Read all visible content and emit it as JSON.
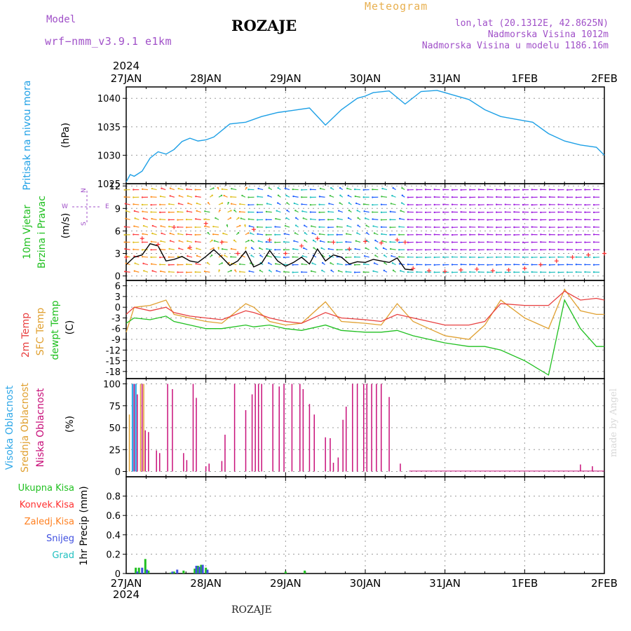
{
  "header": {
    "model_label": "Model",
    "model_name": "wrf−nmm_v3.9.1  e1km",
    "location": "ROZAJE",
    "product": "Meteogram",
    "coords": "lon,lat (20.1312E, 42.8625N)",
    "elevation": "Nadmorska Visina 1012m",
    "model_elevation": "Nadmorska Visina u modelu 1186.16m"
  },
  "footer": {
    "location": "ROZAJE",
    "credit": "made by Angel"
  },
  "colors": {
    "pressure": "#1ea0e6",
    "wind_speed": "#000000",
    "gust": "#ff3030",
    "t2m": "#e84040",
    "sfc_temp": "#e0a030",
    "dewpoint": "#20c020",
    "cloud_high": "#30a8e8",
    "cloud_mid": "#e0a030",
    "cloud_low": "#c8107a",
    "precip_total": "#20c020",
    "precip_conv": "#ff3030",
    "precip_frozen": "#ff8020",
    "snow": "#4050e0",
    "graupel": "#20c0c0",
    "label_purple": "#a050c8"
  },
  "chart_data": [
    {
      "type": "line",
      "panel": "pressure",
      "ylabel": [
        "Pritisak na nivou mora",
        "(hPa)"
      ],
      "ylim": [
        1025,
        1042
      ],
      "yticks": [
        1025,
        1030,
        1035,
        1040
      ],
      "grid": true,
      "top_year": "2024",
      "x_dates": [
        "27JAN",
        "28JAN",
        "29JAN",
        "30JAN",
        "31JAN",
        "1FEB",
        "2FEB"
      ],
      "series": [
        {
          "name": "Pritisak na nivou mora",
          "x": [
            0,
            0.05,
            0.1,
            0.2,
            0.3,
            0.4,
            0.5,
            0.6,
            0.7,
            0.8,
            0.9,
            1.0,
            1.1,
            1.3,
            1.5,
            1.7,
            1.9,
            2.1,
            2.3,
            2.5,
            2.7,
            2.9,
            3.0,
            3.1,
            3.3,
            3.5,
            3.7,
            3.9,
            4.1,
            4.3,
            4.5,
            4.7,
            4.9,
            5.1,
            5.3,
            5.5,
            5.7,
            5.9,
            6.0
          ],
          "values": [
            1025.3,
            1026.6,
            1026.3,
            1027.2,
            1029.5,
            1030.6,
            1030.2,
            1031.0,
            1032.4,
            1033.0,
            1032.5,
            1032.7,
            1033.2,
            1035.5,
            1035.8,
            1036.8,
            1037.5,
            1037.9,
            1038.3,
            1035.3,
            1038.0,
            1040.0,
            1040.4,
            1041.0,
            1041.3,
            1039.0,
            1041.2,
            1041.4,
            1040.6,
            1039.8,
            1038.0,
            1036.8,
            1036.3,
            1035.8,
            1033.8,
            1032.5,
            1031.8,
            1031.4,
            1030.0
          ]
        }
      ]
    },
    {
      "type": "line",
      "panel": "wind",
      "ylabel": [
        "10m Vjetar",
        "Brzina i Pravac",
        "(m/s)"
      ],
      "compass": [
        "N",
        "S",
        "W",
        "E"
      ],
      "ylim": [
        0,
        12
      ],
      "yticks": [
        0,
        3,
        6,
        9,
        12
      ],
      "grid": true,
      "series": [
        {
          "name": "brzina",
          "x": [
            0,
            0.1,
            0.2,
            0.3,
            0.4,
            0.5,
            0.6,
            0.7,
            0.8,
            0.9,
            1.0,
            1.1,
            1.2,
            1.3,
            1.4,
            1.5,
            1.6,
            1.7,
            1.8,
            1.9,
            2.0,
            2.1,
            2.2,
            2.3,
            2.4,
            2.5,
            2.6,
            2.7,
            2.8,
            2.9,
            3.0,
            3.1,
            3.2,
            3.3,
            3.4,
            3.5,
            3.6
          ],
          "values": [
            1.5,
            2.5,
            2.8,
            4.3,
            4.0,
            2.0,
            2.2,
            2.6,
            2.0,
            1.8,
            2.6,
            3.5,
            2.5,
            1.4,
            2.0,
            3.3,
            1.2,
            1.7,
            3.4,
            2.0,
            1.3,
            1.8,
            2.5,
            1.6,
            3.6,
            2.0,
            2.8,
            2.5,
            1.6,
            1.9,
            1.8,
            2.2,
            2.0,
            1.8,
            2.4,
            0.9,
            0.8
          ]
        },
        {
          "name": "udari",
          "x": [
            0,
            0.2,
            0.4,
            0.6,
            0.8,
            1.0,
            1.2,
            1.4,
            1.6,
            1.8,
            2.0,
            2.2,
            2.4,
            2.6,
            2.8,
            3.0,
            3.2,
            3.4,
            3.5,
            3.6,
            3.8,
            4.0,
            4.2,
            4.4,
            4.6,
            4.8,
            5.0,
            5.2,
            5.4,
            5.6,
            5.8,
            6.0
          ],
          "values": [
            2.5,
            5.0,
            4.2,
            6.5,
            3.8,
            7.0,
            4.5,
            3.0,
            6.2,
            4.8,
            3.0,
            4.0,
            5.0,
            4.5,
            3.6,
            4.6,
            4.4,
            4.8,
            4.5,
            1.0,
            0.7,
            0.6,
            0.8,
            0.9,
            0.7,
            0.8,
            1.0,
            1.5,
            2.0,
            2.5,
            2.8,
            3.0
          ]
        }
      ]
    },
    {
      "type": "line",
      "panel": "temperature",
      "ylabel": [
        "2m Temp",
        "SFC Temp",
        "dewpt Temp",
        "(C)"
      ],
      "ylim": [
        -20,
        7
      ],
      "yticks": [
        6,
        3,
        0,
        -3,
        -6,
        -9,
        -12,
        -15,
        -18
      ],
      "grid": true,
      "series": [
        {
          "name": "2m Temp",
          "x": [
            0,
            0.1,
            0.3,
            0.5,
            0.6,
            0.8,
            1.0,
            1.2,
            1.5,
            1.6,
            1.8,
            2.0,
            2.2,
            2.5,
            2.7,
            3.0,
            3.2,
            3.4,
            3.6,
            3.8,
            4.0,
            4.3,
            4.5,
            4.7,
            5.0,
            5.3,
            5.5,
            5.7,
            5.9,
            6.0
          ],
          "values": [
            -2,
            0,
            -1,
            0,
            -1.5,
            -2.5,
            -3,
            -3.5,
            -1,
            -1.5,
            -3,
            -4,
            -4.5,
            -1.5,
            -3,
            -3.5,
            -4,
            -2,
            -3,
            -4,
            -5,
            -5,
            -4,
            1,
            0.5,
            0.5,
            4.5,
            2,
            2.5,
            2
          ]
        },
        {
          "name": "SFC Temp",
          "x": [
            0,
            0.1,
            0.3,
            0.5,
            0.6,
            0.8,
            1.0,
            1.2,
            1.5,
            1.6,
            1.8,
            2.0,
            2.2,
            2.5,
            2.7,
            3.0,
            3.2,
            3.4,
            3.6,
            3.8,
            4.0,
            4.3,
            4.5,
            4.7,
            5.0,
            5.3,
            5.5,
            5.7,
            5.9,
            6.0
          ],
          "values": [
            -7,
            0,
            0.5,
            2,
            -2,
            -3,
            -4,
            -4.5,
            1,
            0,
            -4,
            -5,
            -4.5,
            1.5,
            -4,
            -4.5,
            -5,
            1,
            -4,
            -6,
            -8,
            -9,
            -5,
            2,
            -3,
            -6,
            5,
            -1,
            -2,
            -2
          ]
        },
        {
          "name": "dewpt Temp",
          "x": [
            0,
            0.1,
            0.3,
            0.5,
            0.6,
            0.8,
            1.0,
            1.2,
            1.5,
            1.6,
            1.8,
            2.0,
            2.2,
            2.5,
            2.7,
            3.0,
            3.2,
            3.4,
            3.6,
            3.8,
            4.0,
            4.3,
            4.5,
            4.7,
            5.0,
            5.3,
            5.5,
            5.7,
            5.9,
            6.0
          ],
          "values": [
            -4.5,
            -3,
            -3.5,
            -2.5,
            -4,
            -5,
            -6,
            -6,
            -5,
            -5.5,
            -5,
            -6,
            -6.5,
            -5,
            -6.5,
            -7,
            -7,
            -6.5,
            -8,
            -9,
            -10,
            -11,
            -11,
            -12,
            -15,
            -19,
            2,
            -6,
            -11,
            -11
          ]
        }
      ]
    },
    {
      "type": "bar",
      "panel": "cloud",
      "ylabel": [
        "Visoka Oblacnost",
        "Srednja Oblacnost",
        "Niska Oblacnost",
        "(%)"
      ],
      "ylim": [
        0,
        100
      ],
      "yticks": [
        0,
        25,
        50,
        75,
        100
      ],
      "grid": true,
      "series": [
        {
          "name": "Visoka Oblacnost",
          "x": [
            0.08,
            0.12
          ],
          "values": [
            100,
            100
          ]
        },
        {
          "name": "Srednja Oblacnost",
          "x": [
            0.04,
            0.18,
            0.22
          ],
          "values": [
            65,
            100,
            100
          ]
        },
        {
          "name": "Niska Oblacnost",
          "x": [
            0.1,
            0.14,
            0.2,
            0.24,
            0.28,
            0.38,
            0.42,
            0.52,
            0.58,
            0.72,
            0.76,
            0.84,
            0.88,
            1.0,
            1.04,
            1.2,
            1.24,
            1.36,
            1.5,
            1.58,
            1.62,
            1.66,
            1.7,
            1.84,
            1.92,
            1.98,
            2.08,
            2.18,
            2.22,
            2.3,
            2.36,
            2.5,
            2.56,
            2.6,
            2.66,
            2.72,
            2.76,
            2.84,
            2.9,
            2.98,
            3.02,
            3.08,
            3.14,
            3.2,
            3.3,
            3.44,
            5.7,
            5.85
          ],
          "values": [
            100,
            88,
            100,
            47,
            45,
            24,
            21,
            100,
            94,
            21,
            13,
            100,
            84,
            6,
            9,
            12,
            42,
            100,
            70,
            88,
            100,
            100,
            100,
            100,
            97,
            100,
            100,
            100,
            94,
            77,
            65,
            39,
            38,
            10,
            16,
            59,
            74,
            100,
            100,
            100,
            100,
            100,
            100,
            100,
            85,
            9,
            8,
            6
          ]
        }
      ]
    },
    {
      "type": "bar",
      "panel": "precip",
      "ylabel": [
        "1hr Precip (mm)"
      ],
      "legend": [
        "Ukupna Kisa",
        "Konvek.Kisa",
        "Zaledj.Kisa",
        "Snijeg",
        "Grad"
      ],
      "ylim": [
        0,
        1
      ],
      "yticks": [
        0,
        0.2,
        0.4,
        0.6,
        0.8
      ],
      "grid": true,
      "bottom_year": "2024",
      "x_dates": [
        "27JAN",
        "28JAN",
        "29JAN",
        "30JAN",
        "31JAN",
        "1FEB",
        "2FEB"
      ],
      "series": [
        {
          "name": "Ukupna Kisa",
          "x": [
            0.12,
            0.16,
            0.24,
            0.28,
            0.56,
            0.6,
            0.72,
            0.86,
            0.9,
            0.94,
            1.0,
            2.0,
            2.24
          ],
          "values": [
            0.06,
            0.06,
            0.15,
            0.03,
            0.01,
            0.02,
            0.03,
            0.05,
            0.08,
            0.09,
            0.06,
            0.02,
            0.03
          ]
        },
        {
          "name": "Snijeg",
          "x": [
            0.14,
            0.2,
            0.26,
            0.58,
            0.64,
            0.88,
            0.92,
            0.96,
            1.02
          ],
          "values": [
            0.02,
            0.06,
            0.04,
            0.02,
            0.04,
            0.08,
            0.07,
            0.09,
            0.04
          ]
        }
      ]
    }
  ]
}
